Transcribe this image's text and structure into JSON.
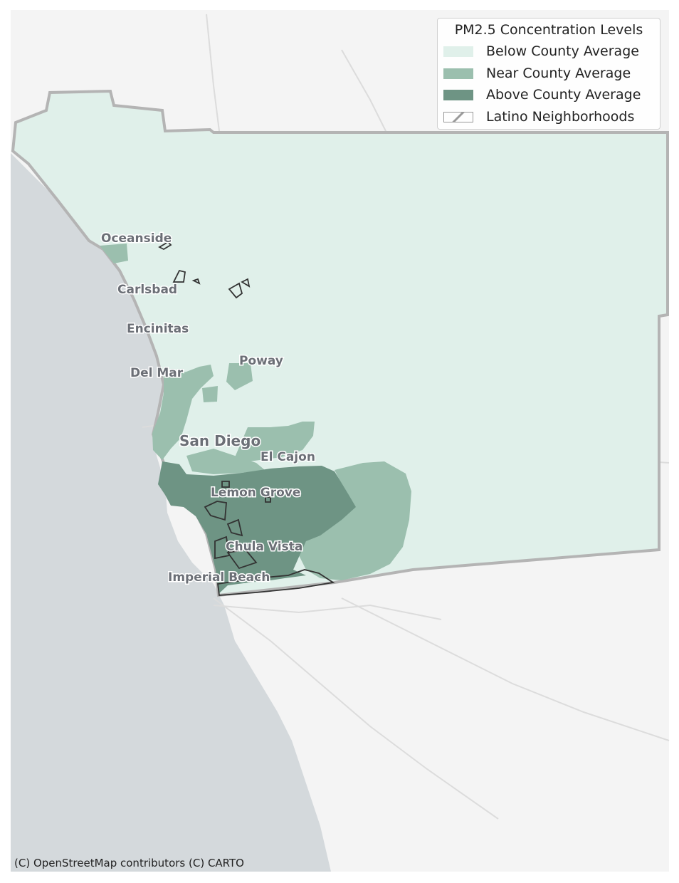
{
  "legend": {
    "title": "PM2.5 Concentration Levels",
    "items": [
      {
        "label": "Below County Average",
        "color": "#e0f0ea"
      },
      {
        "label": "Near County Average",
        "color": "#9bbfae"
      },
      {
        "label": "Above County Average",
        "color": "#6e9484"
      },
      {
        "label": "Latino Neighborhoods",
        "style": "hatched-outline"
      }
    ]
  },
  "cities": [
    {
      "name": "Oceanside"
    },
    {
      "name": "Carlsbad"
    },
    {
      "name": "Encinitas"
    },
    {
      "name": "Poway"
    },
    {
      "name": "Del Mar"
    },
    {
      "name": "San Diego"
    },
    {
      "name": "El Cajon"
    },
    {
      "name": "Lemon Grove"
    },
    {
      "name": "Chula Vista"
    },
    {
      "name": "Imperial Beach"
    }
  ],
  "attribution": "(C) OpenStreetMap contributors (C) CARTO",
  "colors": {
    "ocean": "#d4d9dc",
    "land": "#f4f4f4",
    "below": "#e0f0ea",
    "near": "#9bbfae",
    "above": "#6e9484",
    "border": "#b4b4b4",
    "latino_outline": "#333333"
  }
}
